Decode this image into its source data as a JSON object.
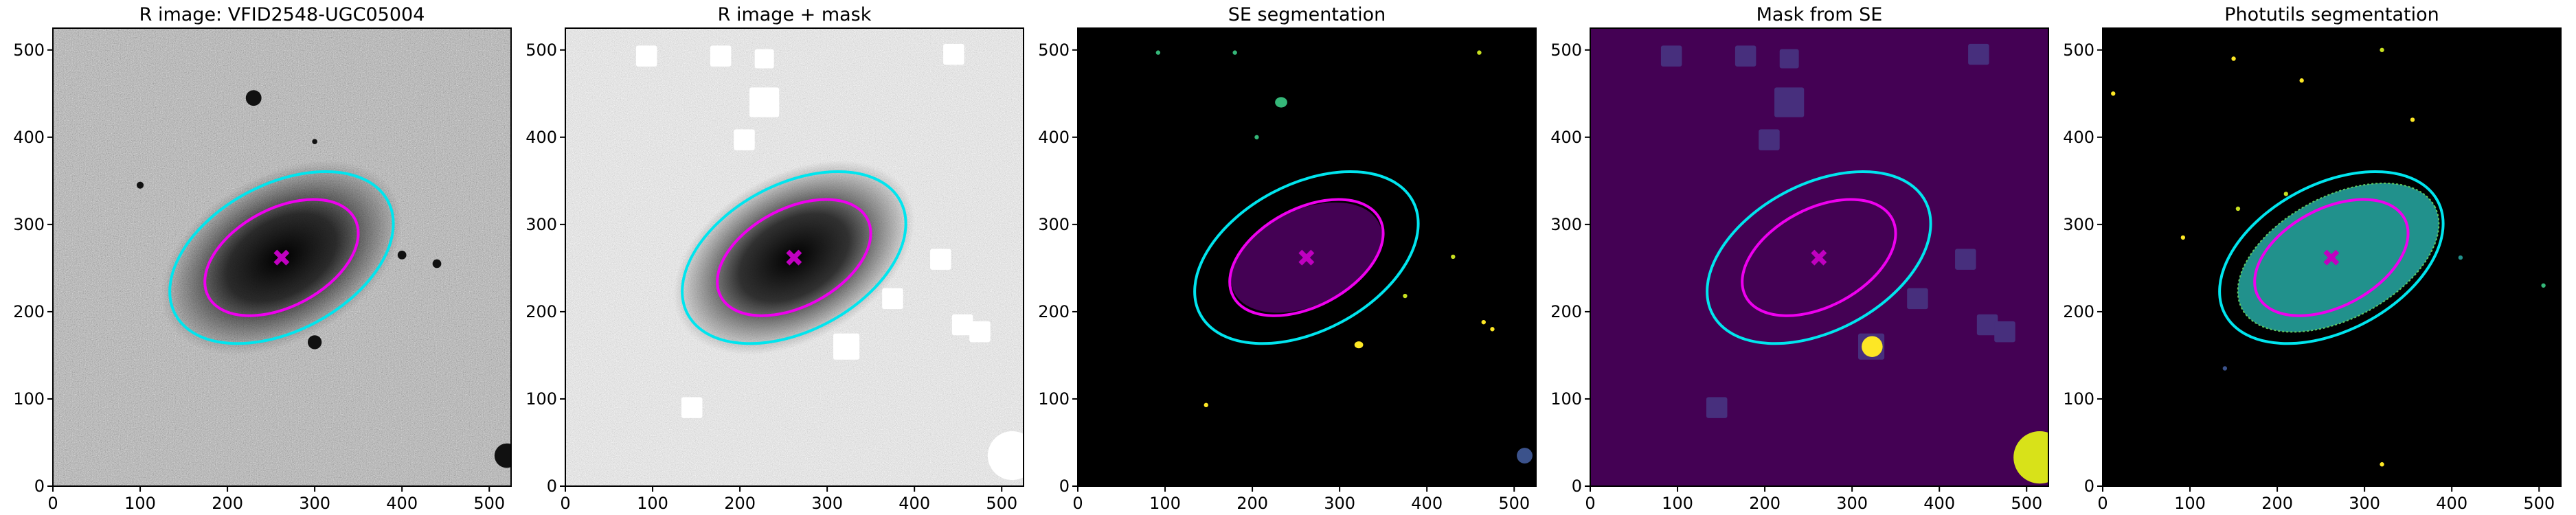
{
  "chart_data": [
    {
      "type": "image",
      "title": "R image: VFID2548-UGC05004",
      "xlim": [
        0,
        525
      ],
      "ylim": [
        0,
        525
      ],
      "xticks": [
        0,
        100,
        200,
        300,
        400,
        500
      ],
      "yticks": [
        0,
        100,
        200,
        300,
        400,
        500
      ]
    },
    {
      "type": "image",
      "title": "R image + mask",
      "xlim": [
        0,
        525
      ],
      "ylim": [
        0,
        525
      ],
      "xticks": [
        0,
        100,
        200,
        300,
        400,
        500
      ],
      "yticks": [
        0,
        100,
        200,
        300,
        400,
        500
      ]
    },
    {
      "type": "image",
      "title": "SE segmentation",
      "xlim": [
        0,
        525
      ],
      "ylim": [
        0,
        525
      ],
      "xticks": [
        0,
        100,
        200,
        300,
        400,
        500
      ],
      "yticks": [
        0,
        100,
        200,
        300,
        400,
        500
      ]
    },
    {
      "type": "image",
      "title": "Mask from SE",
      "xlim": [
        0,
        525
      ],
      "ylim": [
        0,
        525
      ],
      "xticks": [
        0,
        100,
        200,
        300,
        400,
        500
      ],
      "yticks": [
        0,
        100,
        200,
        300,
        400,
        500
      ]
    },
    {
      "type": "image",
      "title": "Photutils segmentation",
      "xlim": [
        0,
        525
      ],
      "ylim": [
        0,
        525
      ],
      "xticks": [
        0,
        100,
        200,
        300,
        400,
        500
      ],
      "yticks": [
        0,
        100,
        200,
        300,
        400,
        500
      ]
    }
  ]
}
